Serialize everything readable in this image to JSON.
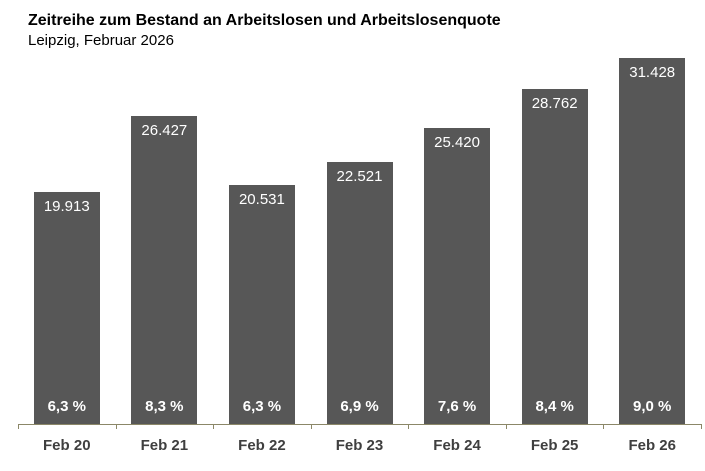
{
  "header": {
    "title": "Zeitreihe zum Bestand an Arbeitslosen und Arbeitslosenquote",
    "subtitle": "Leipzig, Februar 2026"
  },
  "chart_data": {
    "type": "bar",
    "title": "Zeitreihe zum Bestand an Arbeitslosen und Arbeitslosenquote",
    "subtitle": "Leipzig, Februar 2026",
    "categories": [
      "Feb 20",
      "Feb 21",
      "Feb 22",
      "Feb 23",
      "Feb 24",
      "Feb 25",
      "Feb 26"
    ],
    "series": [
      {
        "name": "Bestand an Arbeitslosen",
        "values": [
          19913,
          26427,
          20531,
          22521,
          25420,
          28762,
          31428
        ],
        "labels": [
          "19.913",
          "26.427",
          "20.531",
          "22.521",
          "25.420",
          "28.762",
          "31.428"
        ]
      },
      {
        "name": "Arbeitslosenquote",
        "values": [
          6.3,
          8.3,
          6.3,
          6.9,
          7.6,
          8.4,
          9.0
        ],
        "labels": [
          "6,3 %",
          "8,3 %",
          "6,3 %",
          "6,9 %",
          "7,6 %",
          "8,4 %",
          "9,0 %"
        ]
      }
    ],
    "ylim": [
      0,
      31428
    ],
    "grid": false,
    "legend": "none",
    "xlabel": "",
    "ylabel": "",
    "colors": {
      "bar": "#575757",
      "axis": "#8b8768",
      "value_label": "#ffffff",
      "percent_label": "#ffffff",
      "category_label": "#3f3f3f",
      "background": "#ffffff"
    }
  }
}
